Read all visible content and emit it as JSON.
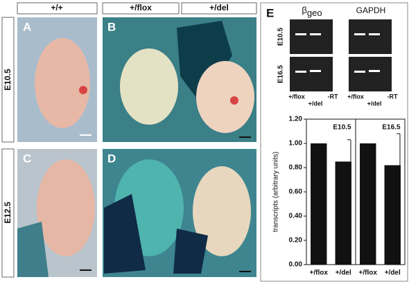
{
  "column_headers": [
    "+/+",
    "+/flox",
    "+/del"
  ],
  "row_labels": [
    "E10.5",
    "E12.5"
  ],
  "panels": [
    "A",
    "B",
    "C",
    "D",
    "E"
  ],
  "gel": {
    "marker": {
      "main": "β",
      "sub": "geo"
    },
    "control": "GAPDH",
    "rows": [
      "E10.5",
      "E16.5"
    ],
    "lanes": [
      "+/flox",
      "+/del",
      "-RT",
      "+/flox",
      "+/del",
      "-RT"
    ]
  },
  "chart_data": {
    "type": "bar",
    "ylabel": "transcripts (arbitrary units)",
    "categories": [
      "+/flox",
      "+/del",
      "+/flox",
      "+/del"
    ],
    "groups": [
      "E10.5",
      "E16.5"
    ],
    "values": [
      1.0,
      0.85,
      1.0,
      0.82
    ],
    "errors": [
      null,
      0.18,
      null,
      0.26
    ],
    "color": "#111111",
    "ylim": [
      0,
      1.2
    ],
    "yticks": [
      {
        "value": 0,
        "label": "0.00"
      },
      {
        "value": 0.2,
        "label": "0.20"
      },
      {
        "value": 0.4,
        "label": "0.40"
      },
      {
        "value": 0.6,
        "label": "0.60"
      },
      {
        "value": 0.8,
        "label": "0.80"
      },
      {
        "value": 1.0,
        "label": "1.00"
      },
      {
        "value": 1.2,
        "label": "1.20"
      }
    ]
  }
}
